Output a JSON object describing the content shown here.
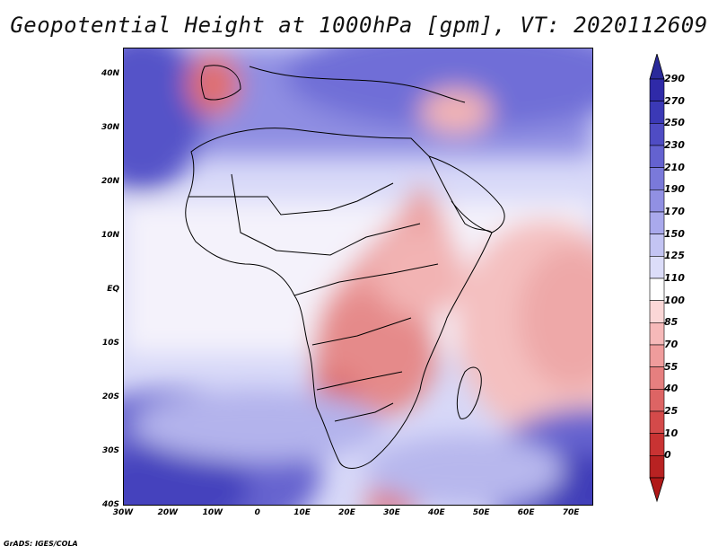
{
  "title": "Geopotential Height at 1000hPa [gpm], VT: 2020112609",
  "credit": "GrADS: IGES/COLA",
  "map": {
    "lat_labels": [
      "40N",
      "30N",
      "20N",
      "10N",
      "EQ",
      "10S",
      "20S",
      "30S",
      "40S"
    ],
    "lon_labels": [
      "30W",
      "20W",
      "10W",
      "0",
      "10E",
      "20E",
      "30E",
      "40E",
      "50E",
      "60E",
      "70E"
    ],
    "extent": {
      "lon_min": -30,
      "lon_max": 75,
      "lat_min": -40,
      "lat_max": 45
    }
  },
  "colorbar": {
    "labels": [
      "290",
      "270",
      "250",
      "230",
      "210",
      "190",
      "170",
      "150",
      "125",
      "110",
      "100",
      "85",
      "70",
      "55",
      "40",
      "25",
      "10",
      "0"
    ],
    "colors": [
      "#2f2aa8",
      "#3b39b6",
      "#4f4cc4",
      "#6462d0",
      "#7a79da",
      "#9190e3",
      "#a9a9ec",
      "#c3c4f3",
      "#dcddf9",
      "#ffffff",
      "#fbd7d7",
      "#f6b9b9",
      "#ef9c9c",
      "#e67f7f",
      "#dd6464",
      "#d44a4a",
      "#c93333",
      "#b82222"
    ],
    "extend_top_color": "#2a2a9a",
    "extend_bottom_color": "#b01818"
  }
}
